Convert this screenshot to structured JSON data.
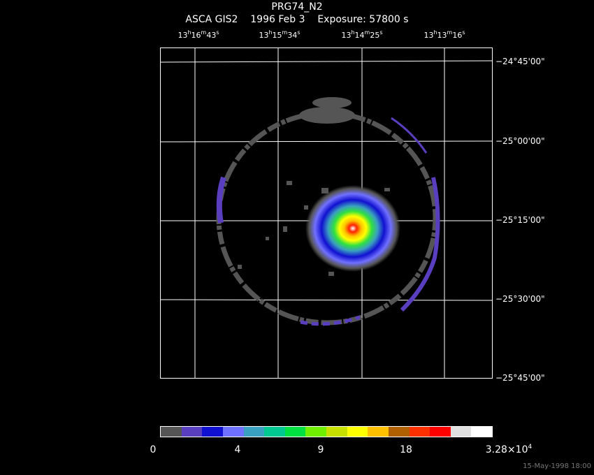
{
  "header": {
    "target": "PRG74_N2",
    "instrument": "ASCA GIS2",
    "date": "1996 Feb  3",
    "exposure": "Exposure: 57800 s"
  },
  "ra_labels": [
    {
      "h": "13",
      "m": "16",
      "s": "43"
    },
    {
      "h": "13",
      "m": "15",
      "s": "34"
    },
    {
      "h": "13",
      "m": "14",
      "s": "25"
    },
    {
      "h": "13",
      "m": "13",
      "s": "16"
    }
  ],
  "dec_labels": [
    "−24°45'00\"",
    "−25°00'00\"",
    "−25°15'00\"",
    "−25°30'00\"",
    "−25°45'00\""
  ],
  "colorbar": {
    "colors": [
      "#555555",
      "#5a3ec0",
      "#1010d0",
      "#7070ff",
      "#3aa0c0",
      "#00c890",
      "#00e040",
      "#70f000",
      "#c8e000",
      "#ffff00",
      "#ffc000",
      "#b06000",
      "#ff3000",
      "#ff0000",
      "#e0e0e0",
      "#ffffff"
    ],
    "tick_labels": [
      "0",
      "4",
      "9",
      "18",
      "3.28×10"
    ],
    "max_exponent": "4"
  },
  "timestamp": "15-May-1998 18:00"
}
